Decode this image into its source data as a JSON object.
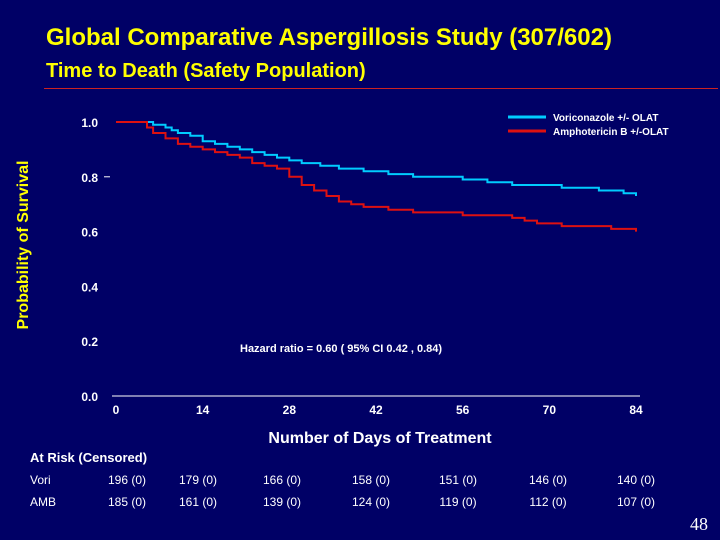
{
  "header": {
    "title": "Global Comparative Aspergillosis Study (307/602)",
    "subtitle": "Time to Death (Safety Population)"
  },
  "colors": {
    "background": "#000066",
    "title": "#ffff00",
    "voriconazole": "#00ccff",
    "amphotericin": "#dd1111",
    "axis": "#ffffff"
  },
  "chart_data": {
    "type": "line",
    "xlabel": "Number of Days of Treatment",
    "ylabel": "Probability of Survival",
    "xlim": [
      0,
      84
    ],
    "ylim": [
      0.0,
      1.0
    ],
    "xticks": [
      "0",
      "14",
      "28",
      "42",
      "56",
      "70",
      "84"
    ],
    "yticks": [
      "0.0",
      "0.2",
      "0.4",
      "0.6",
      "0.8",
      "1.0"
    ],
    "grid": false,
    "legend": "top-right",
    "annotation": "Hazard ratio = 0.60 ( 95% CI  0.42 , 0.84)",
    "series": [
      {
        "name": "Voriconazole +/- OLAT",
        "x": [
          0,
          4,
          6,
          8,
          9,
          10,
          12,
          14,
          16,
          18,
          20,
          22,
          24,
          26,
          28,
          30,
          33,
          36,
          40,
          44,
          48,
          52,
          56,
          60,
          64,
          68,
          72,
          76,
          78,
          80,
          82,
          84
        ],
        "y": [
          1.0,
          1.0,
          0.99,
          0.98,
          0.97,
          0.96,
          0.95,
          0.93,
          0.92,
          0.91,
          0.9,
          0.89,
          0.88,
          0.87,
          0.86,
          0.85,
          0.84,
          0.83,
          0.82,
          0.81,
          0.8,
          0.8,
          0.79,
          0.78,
          0.77,
          0.77,
          0.76,
          0.76,
          0.75,
          0.75,
          0.74,
          0.73
        ]
      },
      {
        "name": "Amphotericin B +/-OLAT",
        "x": [
          0,
          3,
          5,
          6,
          8,
          10,
          12,
          14,
          16,
          18,
          20,
          22,
          24,
          26,
          28,
          30,
          32,
          34,
          36,
          38,
          40,
          44,
          48,
          52,
          56,
          60,
          64,
          66,
          68,
          72,
          76,
          80,
          84
        ],
        "y": [
          1.0,
          1.0,
          0.98,
          0.96,
          0.94,
          0.92,
          0.91,
          0.9,
          0.89,
          0.88,
          0.87,
          0.85,
          0.84,
          0.83,
          0.8,
          0.77,
          0.75,
          0.73,
          0.71,
          0.7,
          0.69,
          0.68,
          0.67,
          0.67,
          0.66,
          0.66,
          0.65,
          0.64,
          0.63,
          0.62,
          0.62,
          0.61,
          0.6
        ]
      }
    ]
  },
  "at_risk": {
    "title": "At Risk (Censored)",
    "rows": [
      {
        "label": "Vori",
        "values": [
          "196 (0)",
          "179 (0)",
          "166 (0)",
          "158 (0)",
          "151 (0)",
          "146 (0)",
          "140 (0)"
        ]
      },
      {
        "label": "AMB",
        "values": [
          "185 (0)",
          "161 (0)",
          "139 (0)",
          "124 (0)",
          "119 (0)",
          "112 (0)",
          "107 (0)"
        ]
      }
    ]
  },
  "page_number": "48"
}
